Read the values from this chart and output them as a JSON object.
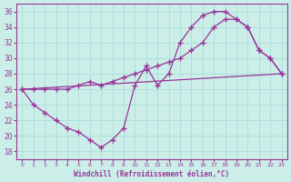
{
  "background_color": "#cceee8",
  "grid_color": "#aadddd",
  "line_color": "#993399",
  "xlabel": "Windchill (Refroidissement éolien,°C)",
  "xlim": [
    -0.5,
    23.5
  ],
  "ylim": [
    17,
    37
  ],
  "yticks": [
    18,
    20,
    22,
    24,
    26,
    28,
    30,
    32,
    34,
    36
  ],
  "xticks": [
    0,
    1,
    2,
    3,
    4,
    5,
    6,
    7,
    8,
    9,
    10,
    11,
    12,
    13,
    14,
    15,
    16,
    17,
    18,
    19,
    20,
    21,
    22,
    23
  ],
  "line1_x": [
    0,
    1,
    2,
    3,
    4,
    5,
    6,
    7,
    8,
    9,
    10,
    11,
    12,
    13,
    14,
    15,
    16,
    17,
    18,
    19,
    20,
    21,
    22,
    23
  ],
  "line1_y": [
    26,
    24,
    23,
    22,
    21,
    20.5,
    19.5,
    18.5,
    19.5,
    21,
    26.5,
    29,
    26.5,
    28,
    32,
    34,
    35.5,
    36,
    36,
    35,
    34,
    31,
    30,
    28
  ],
  "line2_x": [
    0,
    1,
    2,
    3,
    4,
    5,
    6,
    7,
    8,
    9,
    10,
    11,
    12,
    13,
    14,
    15,
    16,
    17,
    18,
    19,
    20,
    21,
    22,
    23
  ],
  "line2_y": [
    26,
    26,
    26,
    26,
    26,
    26.5,
    27,
    26.5,
    27,
    27.5,
    28,
    28.5,
    29,
    29.5,
    30,
    31,
    32,
    34,
    35,
    35,
    34,
    31,
    30,
    28
  ],
  "line3_x": [
    0,
    23
  ],
  "line3_y": [
    26,
    28
  ]
}
